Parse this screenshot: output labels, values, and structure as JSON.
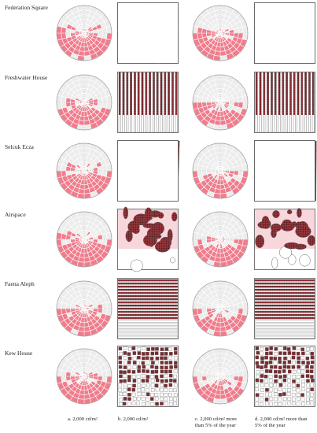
{
  "figure": {
    "rows": [
      {
        "label": "Federation Square",
        "pattern": "web"
      },
      {
        "label": "Freshwater House",
        "pattern": "vertical"
      },
      {
        "label": "Selcuk Ecza",
        "pattern": "ray"
      },
      {
        "label": "Airspace",
        "pattern": "cells"
      },
      {
        "label": "Faena Aleph",
        "pattern": "horizontal"
      },
      {
        "label": "Kew House",
        "pattern": "pixels"
      }
    ],
    "columns": [
      {
        "caption_lines": [
          "a. 2,000 cd/m²"
        ]
      },
      {
        "caption_lines": [
          "b. 2,000 cd/m²"
        ]
      },
      {
        "caption_lines": [
          "c. 2,000 cd/m² more",
          "than 5% of the year"
        ]
      },
      {
        "caption_lines": [
          "d. 2,000 cd/m² more than",
          "5% of the year"
        ]
      }
    ],
    "colors": {
      "highlight": "#f07c8c",
      "facade_dark": "#7a2c30",
      "panel_bg": "#f7d7dc",
      "grid_line": "#9a9a9a",
      "outline": "#555555"
    }
  }
}
